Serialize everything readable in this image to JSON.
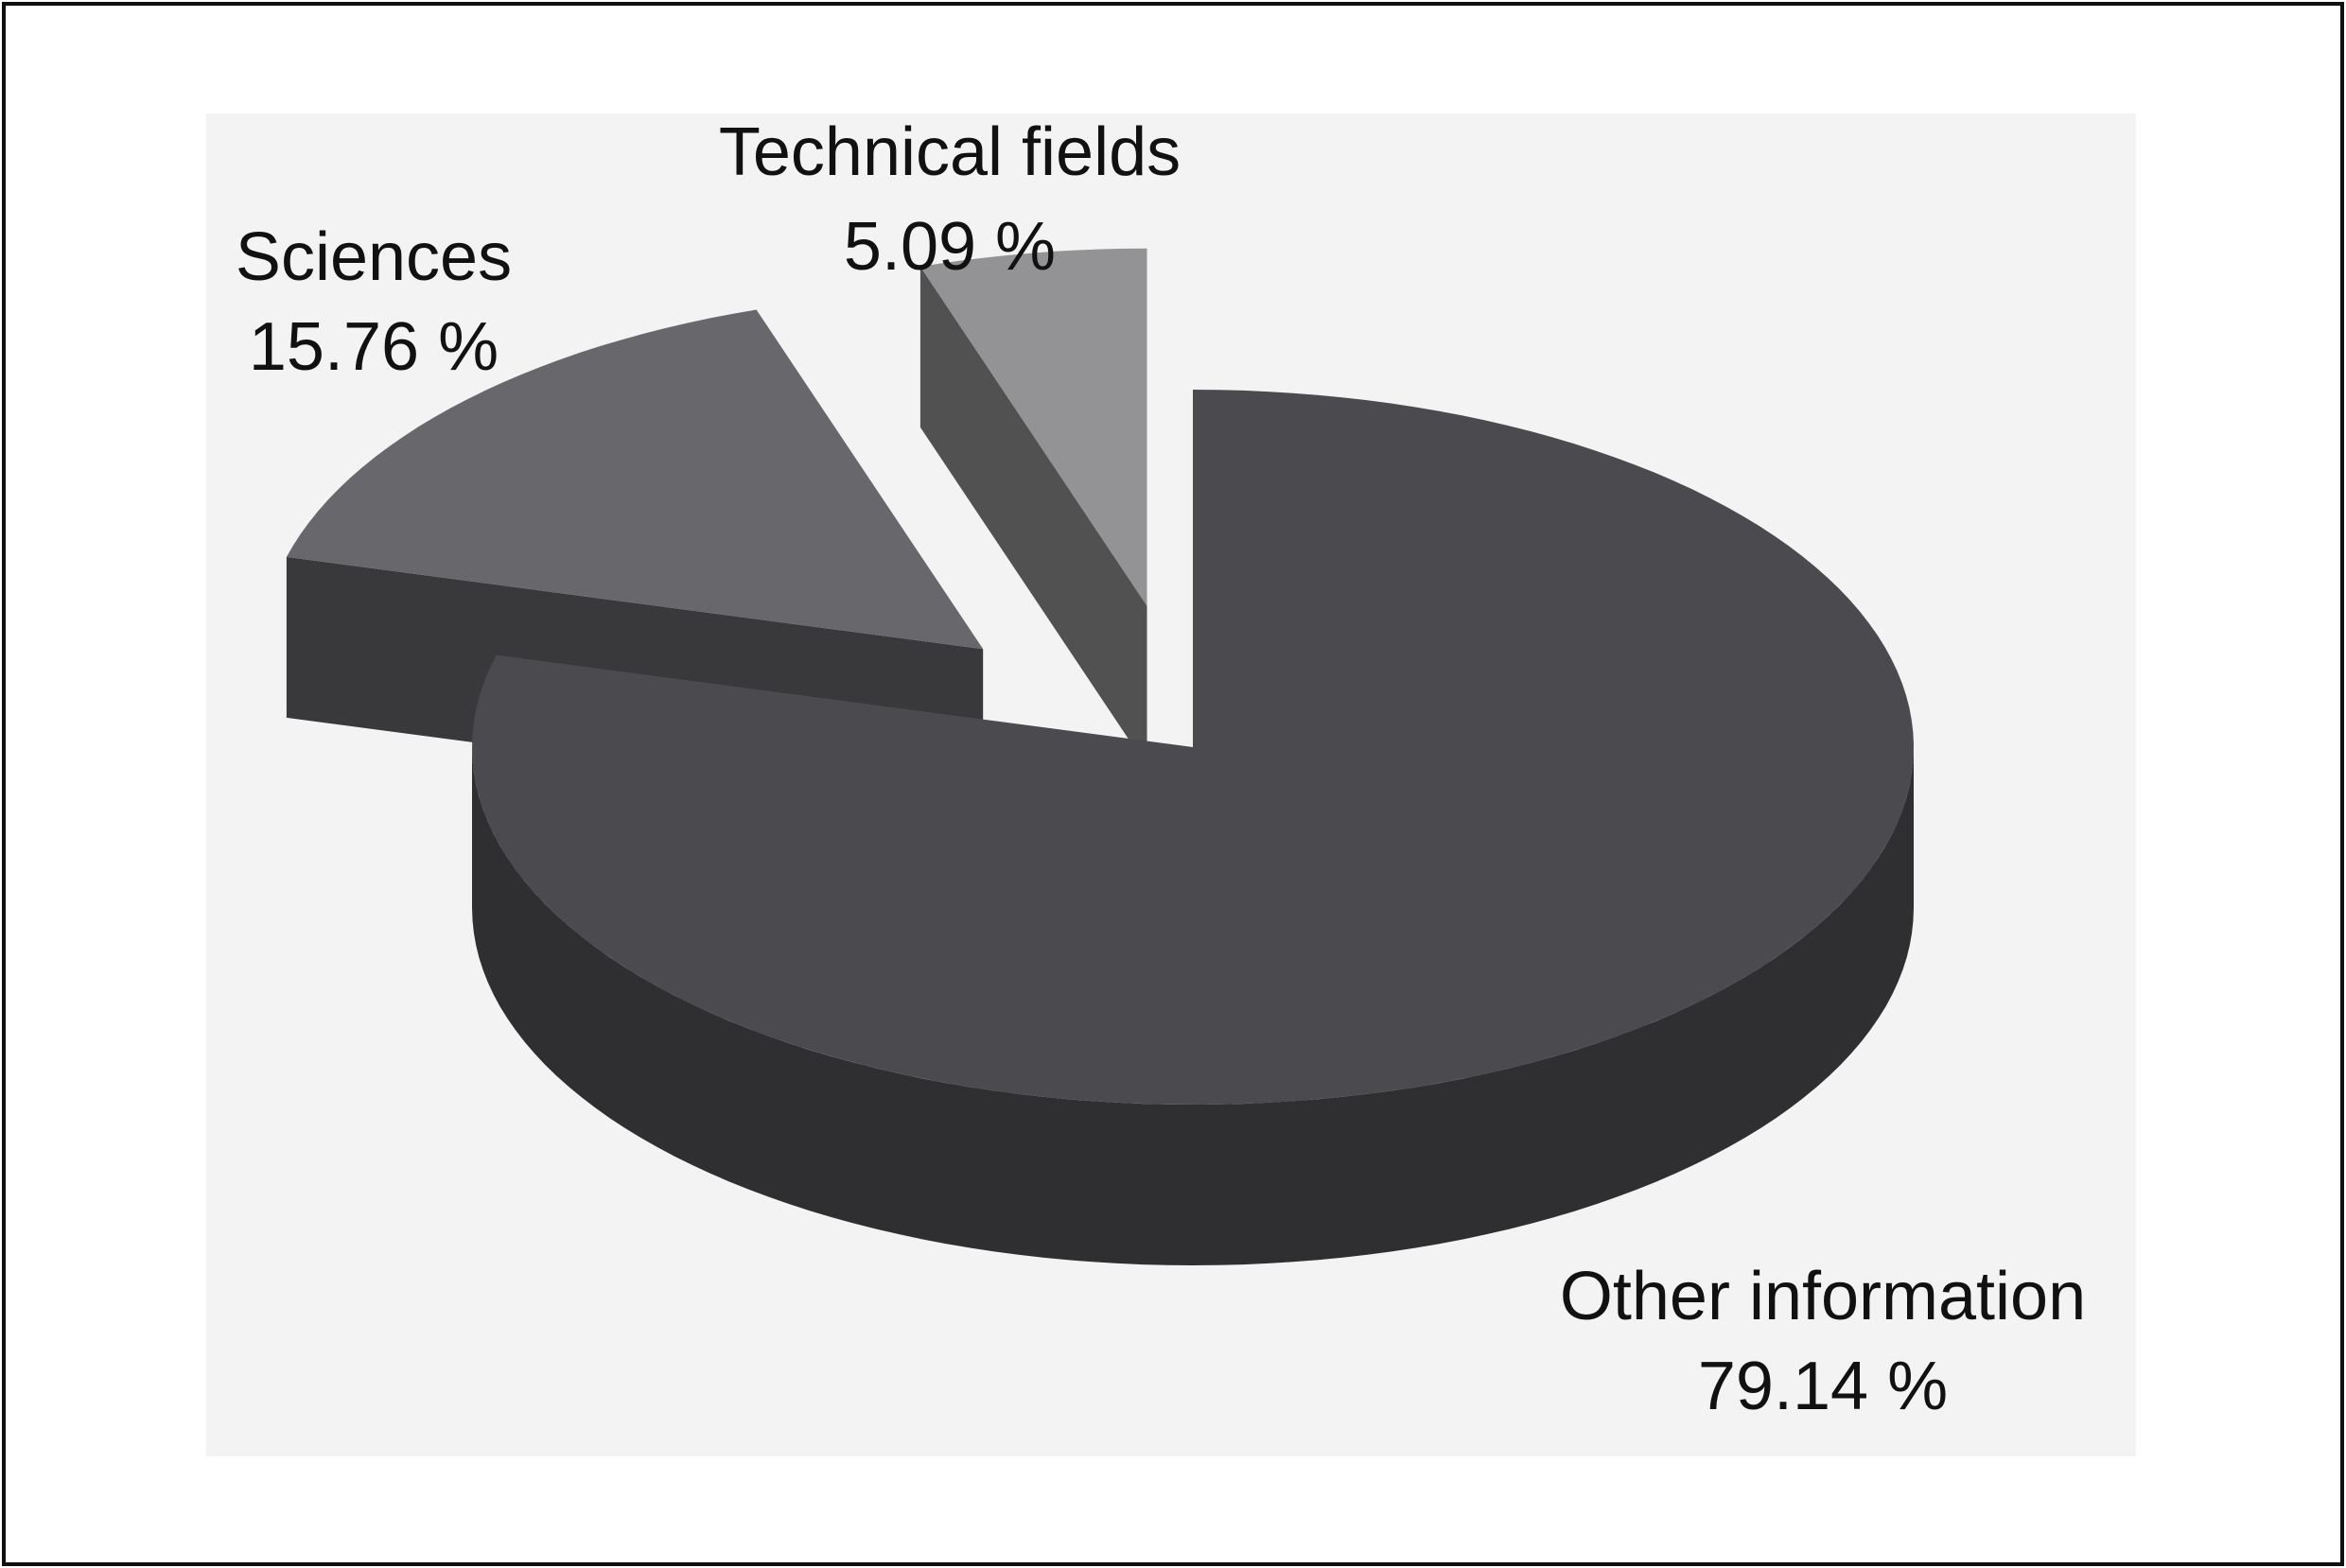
{
  "chart_data": {
    "type": "pie3d",
    "categories": [
      "Other information",
      "Sciences",
      "Technical fields"
    ],
    "values": [
      79.14,
      15.76,
      5.09
    ],
    "value_labels": [
      "79.14 %",
      "15.76 %",
      "5.09 %"
    ],
    "colors": [
      "#4b4b4f",
      "#68686c",
      "#939395"
    ]
  }
}
